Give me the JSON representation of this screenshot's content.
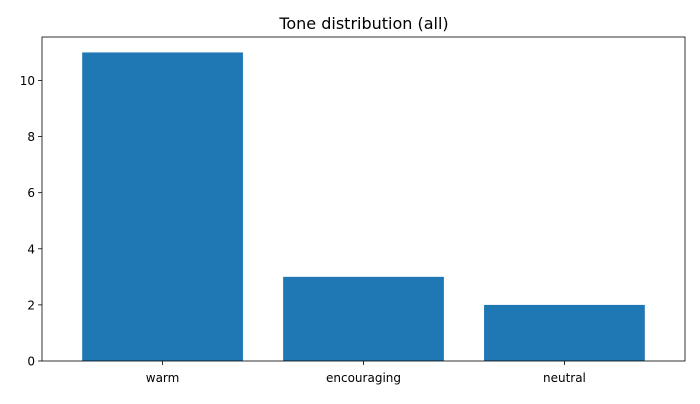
{
  "chart_data": {
    "type": "bar",
    "title": "Tone distribution (all)",
    "xlabel": "",
    "ylabel": "",
    "categories": [
      "warm",
      "encouraging",
      "neutral"
    ],
    "values": [
      11,
      3,
      2
    ],
    "ylim": [
      0,
      11.55
    ],
    "yticks": [
      0,
      2,
      4,
      6,
      8,
      10
    ],
    "grid": false,
    "bar_color": "#1f77b4"
  }
}
